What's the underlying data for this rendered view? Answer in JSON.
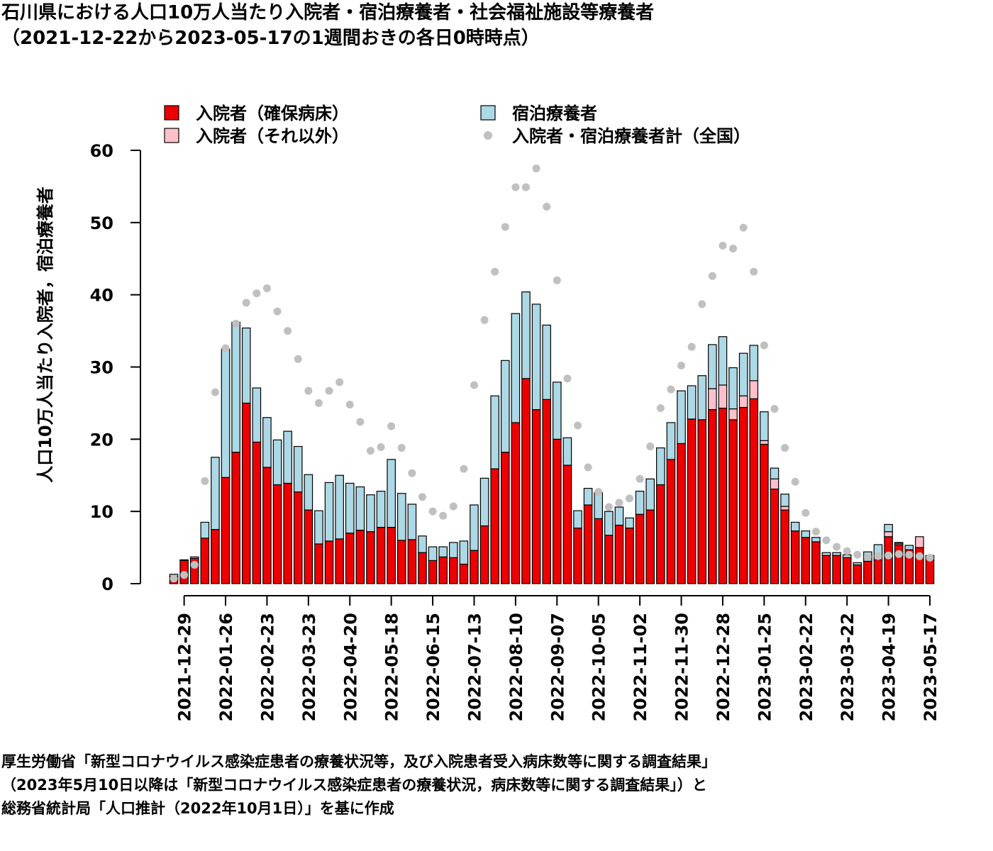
{
  "title": {
    "line1": "石川県における人口10万人当たり入院者・宿泊療養者・社会福祉施設等療養者",
    "line2": "（2021-12-22から2023-05-17の1週間おきの各日0時時点）"
  },
  "source": {
    "line1": "厚生労働省「新型コロナウイルス感染症患者の療養状況等，及び入院患者受入病床数等に関する調査結果」",
    "line2": "（2023年5月10日以降は「新型コロナウイルス感染症患者の療養状況，病床数等に関する調査結果」）と",
    "line3": "総務省統計局「人口推計（2022年10月1日）」を基に作成"
  },
  "colors": {
    "secured": "#ee0000",
    "other": "#ffc0cb",
    "hotel": "#add8e6",
    "national": "#c0c0c0"
  },
  "chart_data": {
    "type": "bar",
    "stacked": true,
    "ylabel": "人口10万人当たり入院者，宿泊療養者",
    "ylim": [
      0,
      60
    ],
    "yticks": [
      0,
      10,
      20,
      30,
      40,
      50,
      60
    ],
    "legend": "top",
    "x": [
      "2021-12-22",
      "2021-12-29",
      "2022-01-05",
      "2022-01-12",
      "2022-01-19",
      "2022-01-26",
      "2022-02-02",
      "2022-02-09",
      "2022-02-16",
      "2022-02-23",
      "2022-03-02",
      "2022-03-09",
      "2022-03-16",
      "2022-03-23",
      "2022-03-30",
      "2022-04-06",
      "2022-04-13",
      "2022-04-20",
      "2022-04-27",
      "2022-05-04",
      "2022-05-11",
      "2022-05-18",
      "2022-05-25",
      "2022-06-01",
      "2022-06-08",
      "2022-06-15",
      "2022-06-22",
      "2022-06-29",
      "2022-07-06",
      "2022-07-13",
      "2022-07-20",
      "2022-07-27",
      "2022-08-03",
      "2022-08-10",
      "2022-08-17",
      "2022-08-24",
      "2022-08-31",
      "2022-09-07",
      "2022-09-14",
      "2022-09-21",
      "2022-09-28",
      "2022-10-05",
      "2022-10-12",
      "2022-10-19",
      "2022-10-26",
      "2022-11-02",
      "2022-11-09",
      "2022-11-16",
      "2022-11-23",
      "2022-11-30",
      "2022-12-07",
      "2022-12-14",
      "2022-12-21",
      "2022-12-28",
      "2023-01-04",
      "2023-01-11",
      "2023-01-18",
      "2023-01-25",
      "2023-02-01",
      "2023-02-08",
      "2023-02-15",
      "2023-02-22",
      "2023-03-01",
      "2023-03-08",
      "2023-03-15",
      "2023-03-22",
      "2023-03-29",
      "2023-04-05",
      "2023-04-12",
      "2023-04-19",
      "2023-04-26",
      "2023-05-03",
      "2023-05-10",
      "2023-05-17"
    ],
    "xtick_labels": [
      "2021-12-29",
      "2022-01-26",
      "2022-02-23",
      "2022-03-23",
      "2022-04-20",
      "2022-05-18",
      "2022-06-15",
      "2022-07-13",
      "2022-08-10",
      "2022-09-07",
      "2022-10-05",
      "2022-11-02",
      "2022-11-30",
      "2022-12-28",
      "2023-01-25",
      "2023-02-22",
      "2023-03-22",
      "2023-04-19",
      "2023-05-17"
    ],
    "series": [
      {
        "name": "入院者（確保病床）",
        "kind": "bar",
        "color": "#ee0000",
        "values": [
          1.0,
          3.2,
          3.5,
          6.3,
          7.5,
          14.7,
          18.2,
          25.0,
          19.6,
          16.1,
          13.7,
          13.9,
          12.7,
          10.2,
          5.5,
          5.9,
          6.2,
          7.0,
          7.4,
          7.2,
          7.8,
          7.8,
          6.0,
          6.1,
          4.3,
          3.2,
          3.7,
          3.6,
          2.7,
          4.6,
          8.0,
          15.9,
          18.2,
          22.3,
          28.4,
          24.1,
          25.5,
          20.0,
          16.4,
          7.7,
          10.9,
          9.0,
          6.7,
          8.1,
          7.7,
          9.6,
          10.2,
          13.7,
          17.2,
          19.4,
          22.8,
          22.7,
          24.1,
          24.3,
          22.7,
          24.4,
          25.6,
          19.3,
          13.1,
          10.2,
          7.3,
          6.4,
          5.8,
          3.9,
          3.9,
          3.6,
          2.6,
          3.1,
          3.3,
          6.5,
          5.4,
          4.7,
          5.0,
          3.6
        ]
      },
      {
        "name": "入院者（それ以外）",
        "kind": "bar",
        "color": "#ffc0cb",
        "values": [
          0,
          0,
          0,
          0,
          0,
          0,
          0,
          0,
          0,
          0,
          0,
          0,
          0,
          0,
          0,
          0,
          0,
          0,
          0,
          0,
          0,
          0,
          0,
          0,
          0,
          0,
          0,
          0,
          0,
          0,
          0,
          0,
          0,
          0,
          0,
          0,
          0,
          0,
          0,
          0,
          0,
          0,
          0,
          0,
          0,
          0,
          0,
          0,
          0,
          0,
          0,
          0,
          2.9,
          3.2,
          1.5,
          1.6,
          2.5,
          0.5,
          1.4,
          0.5,
          0,
          0,
          0,
          0,
          0,
          0,
          0,
          0,
          0,
          0.7,
          0.2,
          0,
          1.5,
          0
        ]
      },
      {
        "name": "宿泊療養者",
        "kind": "bar",
        "color": "#add8e6",
        "values": [
          0.3,
          0.1,
          0.2,
          2.2,
          10.0,
          17.8,
          18.0,
          10.4,
          7.5,
          6.9,
          6.2,
          7.2,
          6.3,
          4.9,
          4.6,
          8.1,
          8.8,
          6.9,
          6.0,
          5.1,
          5.0,
          9.4,
          6.5,
          4.9,
          2.3,
          1.9,
          1.4,
          2.1,
          3.2,
          6.3,
          6.6,
          10.1,
          12.7,
          15.1,
          12.0,
          14.6,
          10.3,
          7.9,
          3.8,
          2.4,
          2.3,
          3.6,
          3.3,
          2.5,
          1.4,
          3.2,
          4.3,
          5.1,
          5.1,
          7.3,
          4.6,
          6.1,
          6.1,
          6.7,
          5.7,
          5.9,
          4.9,
          4.0,
          1.5,
          1.7,
          1.2,
          0.9,
          0.6,
          0.4,
          0.4,
          0.4,
          0.3,
          1.3,
          2.1,
          1.0,
          0.1,
          0.6,
          0,
          0.3
        ]
      },
      {
        "name": "入院者・宿泊療養者計（全国）",
        "kind": "point",
        "color": "#c0c0c0",
        "values": [
          0.7,
          1.2,
          2.6,
          14.2,
          26.5,
          32.6,
          36.0,
          38.9,
          40.2,
          40.9,
          37.7,
          35.0,
          31.1,
          26.7,
          25.0,
          26.7,
          27.9,
          24.8,
          22.4,
          18.4,
          18.9,
          21.8,
          18.8,
          15.3,
          12.0,
          10.0,
          9.4,
          10.7,
          15.9,
          27.5,
          36.5,
          43.2,
          49.4,
          54.9,
          54.9,
          57.5,
          52.2,
          42.0,
          28.4,
          21.9,
          16.1,
          12.7,
          10.6,
          11.2,
          11.8,
          14.5,
          19.0,
          24.3,
          26.9,
          30.2,
          32.8,
          38.7,
          42.6,
          46.8,
          46.4,
          49.3,
          43.2,
          33.0,
          24.2,
          18.8,
          14.1,
          9.8,
          7.2,
          6.0,
          5.1,
          4.5,
          4.0,
          3.7,
          3.8,
          3.9,
          4.1,
          4.0,
          3.8,
          3.6
        ]
      }
    ]
  }
}
